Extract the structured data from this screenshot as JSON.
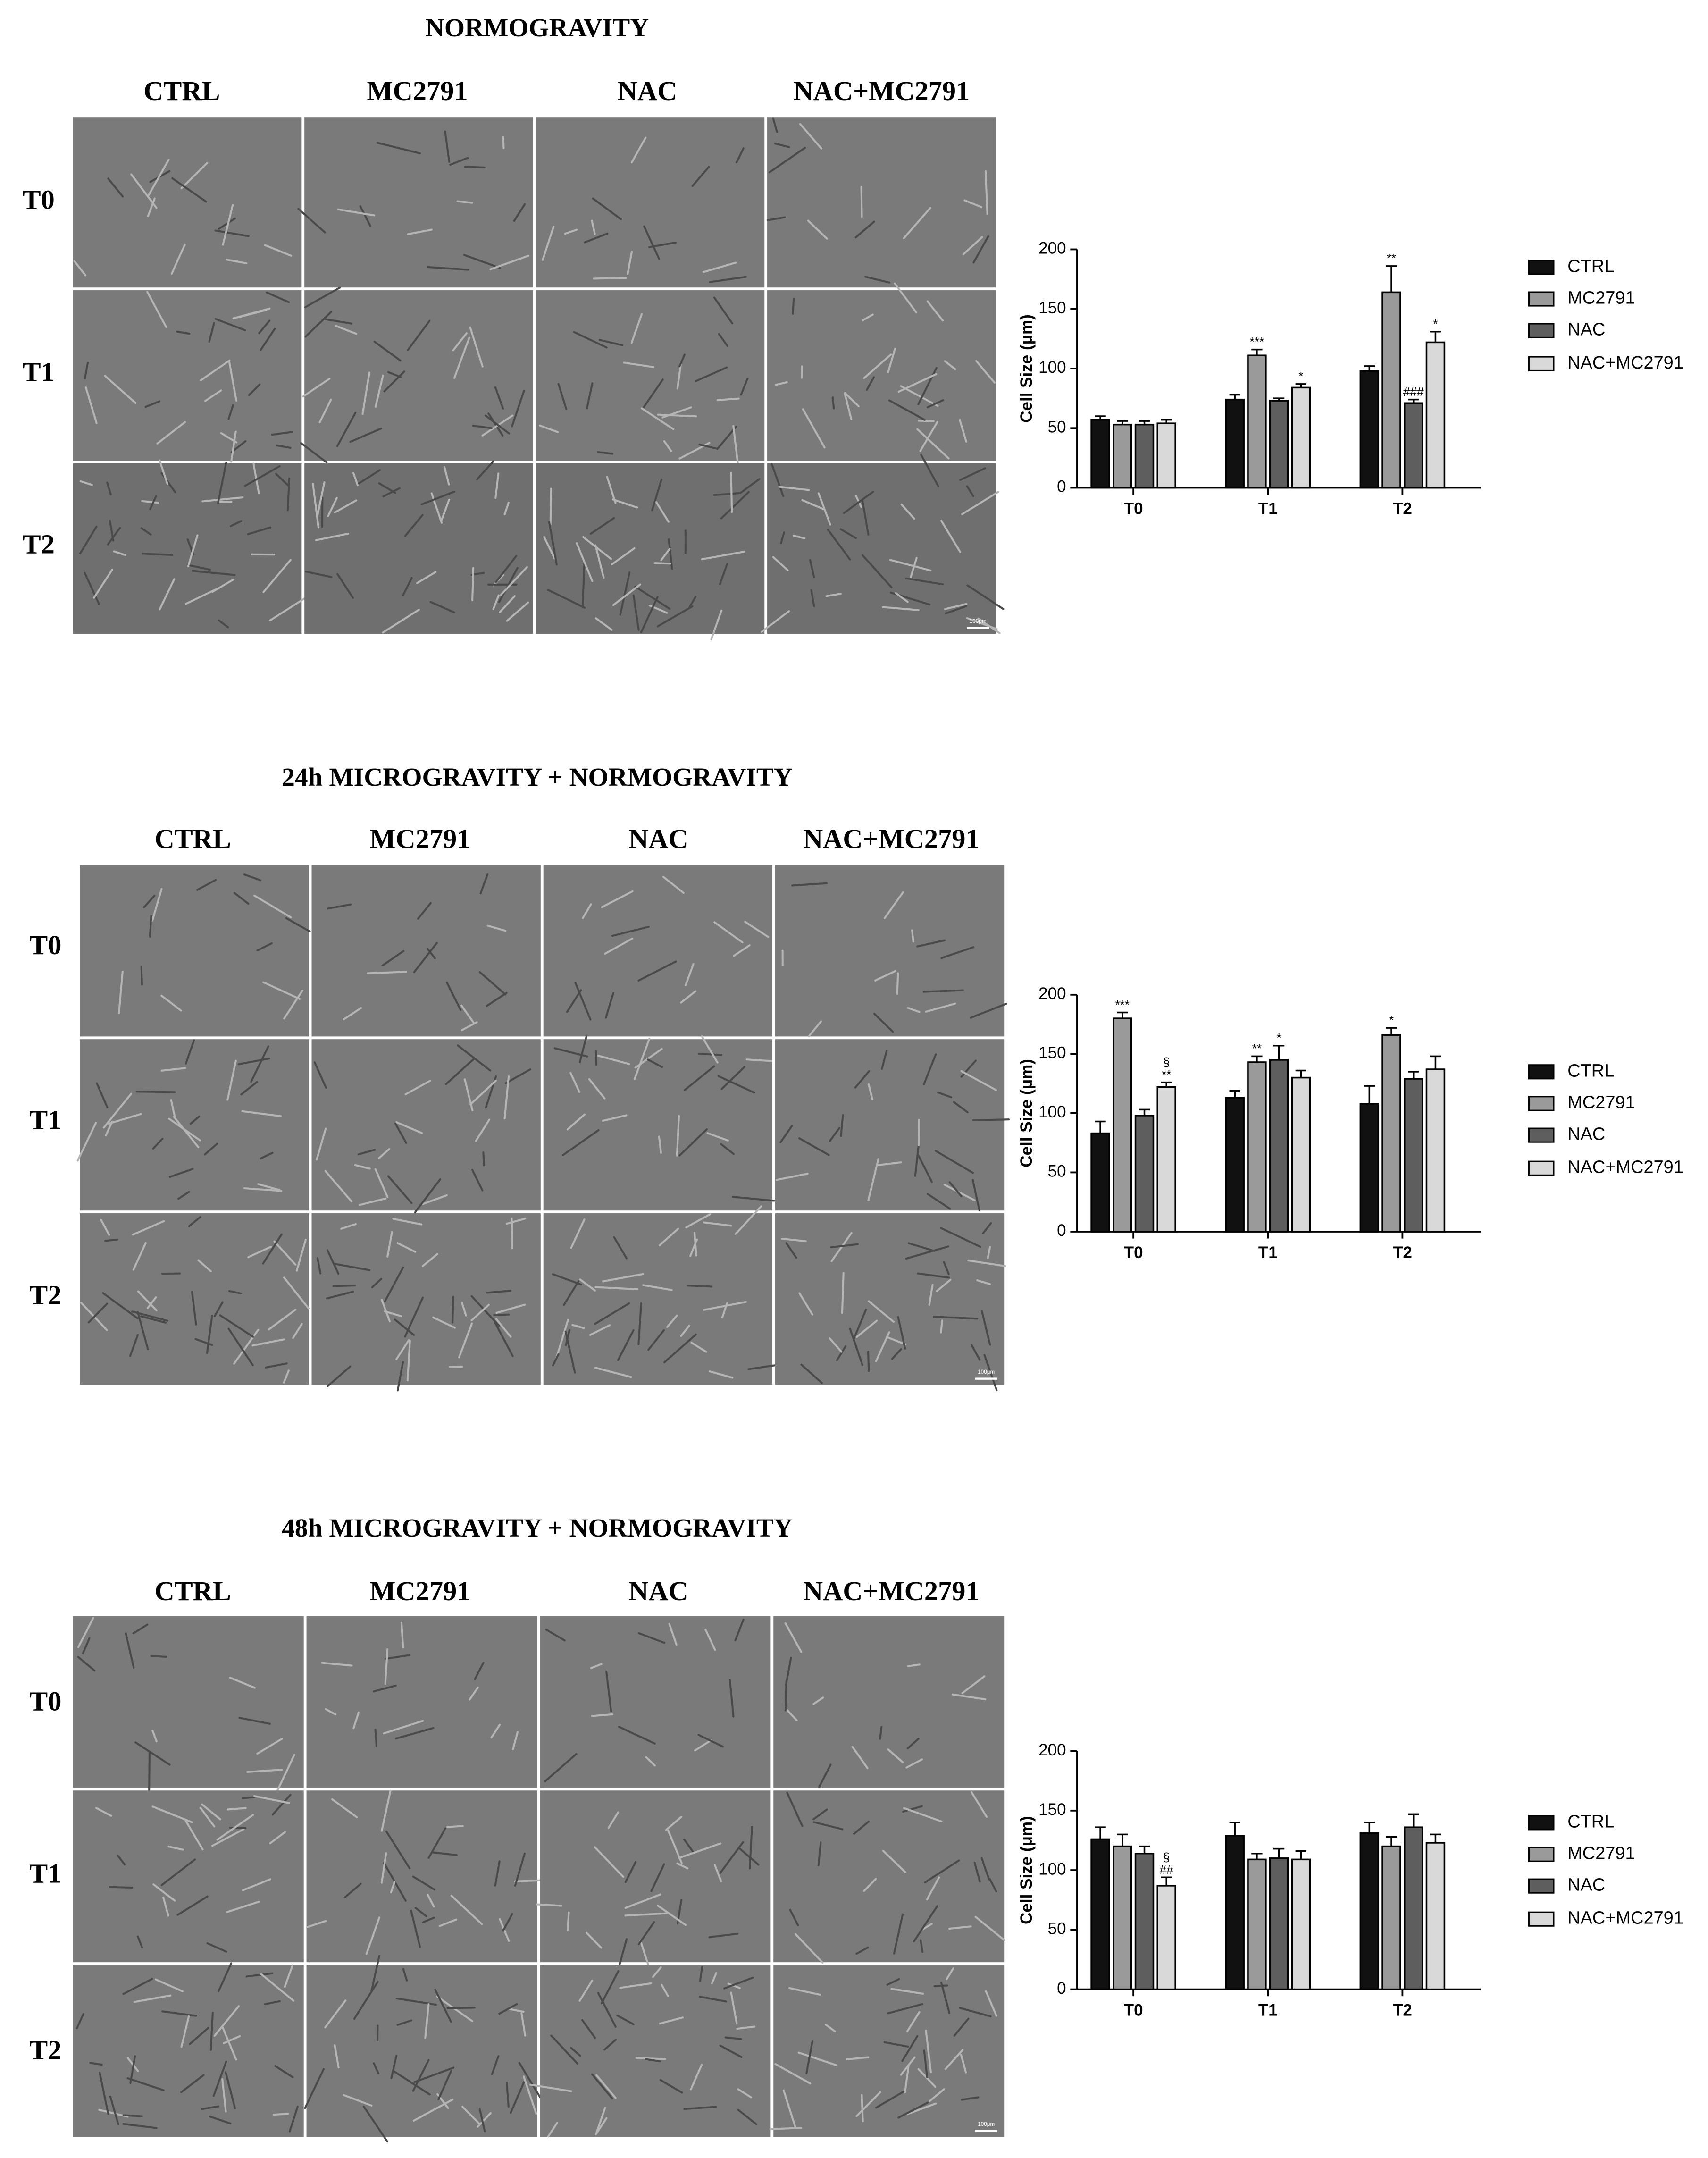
{
  "panels": [
    {
      "title": "NORMOGRAVITY",
      "columns": [
        "CTRL",
        "MC2791",
        "NAC",
        "NAC+MC2791"
      ],
      "rows": [
        "T0",
        "T1",
        "T2"
      ],
      "scale_bar": "100μm"
    },
    {
      "title": "24h MICROGRAVITY + NORMOGRAVITY",
      "columns": [
        "CTRL",
        "MC2791",
        "NAC",
        "NAC+MC2791"
      ],
      "rows": [
        "T0",
        "T1",
        "T2"
      ],
      "scale_bar": "100μm"
    },
    {
      "title": "48h MICROGRAVITY + NORMOGRAVITY",
      "columns": [
        "CTRL",
        "MC2791",
        "NAC",
        "NAC+MC2791"
      ],
      "rows": [
        "T0",
        "T1",
        "T2"
      ],
      "scale_bar": "100μm"
    }
  ],
  "chart_data": [
    {
      "type": "bar",
      "ylabel": "Cell Size (μm)",
      "categories": [
        "T0",
        "T1",
        "T2"
      ],
      "ylim": [
        0,
        200
      ],
      "yticks": [
        0,
        50,
        100,
        150,
        200
      ],
      "legend": "right",
      "series": [
        {
          "name": "CTRL",
          "color": "#111111",
          "values": [
            57,
            74,
            98
          ],
          "errors": [
            3,
            4,
            4
          ],
          "significance": [
            null,
            null,
            null
          ]
        },
        {
          "name": "MC2791",
          "color": "#9a9a9a",
          "values": [
            53,
            111,
            164
          ],
          "errors": [
            3,
            5,
            22
          ],
          "significance": [
            null,
            [
              "***"
            ],
            [
              "**"
            ]
          ]
        },
        {
          "name": "NAC",
          "color": "#5e5e5e",
          "values": [
            53,
            73,
            71
          ],
          "errors": [
            3,
            2,
            3
          ],
          "significance": [
            null,
            null,
            [
              "###"
            ]
          ]
        },
        {
          "name": "NAC+MC2791",
          "color": "#d9d9d9",
          "values": [
            54,
            84,
            122
          ],
          "errors": [
            3,
            3,
            9
          ],
          "significance": [
            null,
            [
              "*"
            ],
            [
              "*"
            ]
          ]
        }
      ]
    },
    {
      "type": "bar",
      "ylabel": "Cell Size (μm)",
      "categories": [
        "T0",
        "T1",
        "T2"
      ],
      "ylim": [
        0,
        200
      ],
      "yticks": [
        0,
        50,
        100,
        150,
        200
      ],
      "legend": "right",
      "series": [
        {
          "name": "CTRL",
          "color": "#111111",
          "values": [
            83,
            113,
            108
          ],
          "errors": [
            10,
            6,
            15
          ],
          "significance": [
            null,
            null,
            null
          ]
        },
        {
          "name": "MC2791",
          "color": "#9a9a9a",
          "values": [
            180,
            143,
            166
          ],
          "errors": [
            5,
            5,
            6
          ],
          "significance": [
            [
              "***"
            ],
            [
              "**"
            ],
            [
              "*"
            ]
          ]
        },
        {
          "name": "NAC",
          "color": "#5e5e5e",
          "values": [
            98,
            145,
            129
          ],
          "errors": [
            5,
            12,
            6
          ],
          "significance": [
            null,
            [
              "*"
            ],
            null
          ]
        },
        {
          "name": "NAC+MC2791",
          "color": "#d9d9d9",
          "values": [
            122,
            130,
            137
          ],
          "errors": [
            4,
            6,
            11
          ],
          "significance": [
            [
              "§",
              "**"
            ],
            null,
            null
          ]
        }
      ]
    },
    {
      "type": "bar",
      "ylabel": "Cell Size (μm)",
      "categories": [
        "T0",
        "T1",
        "T2"
      ],
      "ylim": [
        0,
        200
      ],
      "yticks": [
        0,
        50,
        100,
        150,
        200
      ],
      "legend": "right",
      "series": [
        {
          "name": "CTRL",
          "color": "#111111",
          "values": [
            126,
            129,
            131
          ],
          "errors": [
            10,
            11,
            9
          ],
          "significance": [
            null,
            null,
            null
          ]
        },
        {
          "name": "MC2791",
          "color": "#9a9a9a",
          "values": [
            120,
            109,
            120
          ],
          "errors": [
            10,
            5,
            8
          ],
          "significance": [
            null,
            null,
            null
          ]
        },
        {
          "name": "NAC",
          "color": "#5e5e5e",
          "values": [
            114,
            110,
            136
          ],
          "errors": [
            6,
            8,
            11
          ],
          "significance": [
            null,
            null,
            null
          ]
        },
        {
          "name": "NAC+MC2791",
          "color": "#d9d9d9",
          "values": [
            87,
            109,
            123
          ],
          "errors": [
            7,
            7,
            7
          ],
          "significance": [
            [
              "§",
              "##"
            ],
            null,
            null
          ]
        }
      ]
    }
  ]
}
